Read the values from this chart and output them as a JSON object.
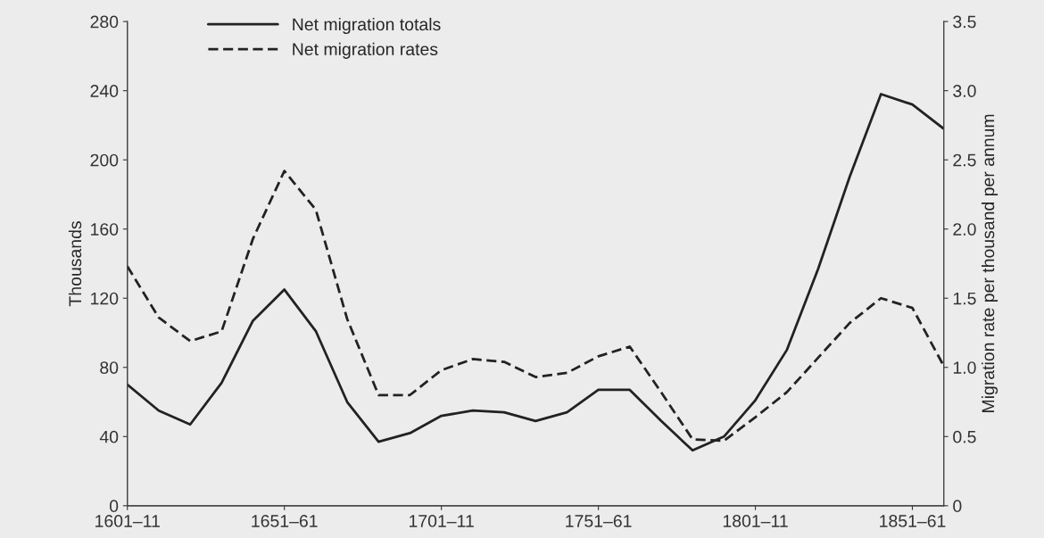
{
  "chart_data": {
    "type": "line",
    "ylabel": "Thousands",
    "y2label": "Migration rate per thousand per annum",
    "categories": [
      "1601–11",
      null,
      null,
      null,
      null,
      "1651–61",
      null,
      null,
      null,
      null,
      "1701–11",
      null,
      null,
      null,
      null,
      "1751–61",
      null,
      null,
      null,
      null,
      "1801–11",
      null,
      null,
      null,
      null,
      "1851–61",
      null
    ],
    "series": [
      {
        "name": "Net migration totals",
        "color": "#222222",
        "line_style": "solid",
        "values": [
          70,
          55,
          47,
          71,
          107,
          125,
          101,
          60,
          37,
          42,
          52,
          55,
          54,
          49,
          54,
          67,
          67,
          49,
          32,
          40,
          61,
          90,
          137,
          190,
          238,
          232,
          218
        ]
      },
      {
        "name": "Net migration rates",
        "color": "#222222",
        "line_style": "dashed",
        "axis": "y2",
        "values": [
          1.73,
          1.36,
          1.19,
          1.26,
          1.93,
          2.42,
          2.14,
          1.35,
          0.8,
          0.8,
          0.98,
          1.06,
          1.04,
          0.93,
          0.96,
          1.08,
          1.15,
          0.82,
          0.48,
          0.47,
          0.64,
          0.82,
          1.07,
          1.32,
          1.5,
          1.43,
          1.01
        ]
      }
    ],
    "ylim": [
      0,
      280
    ],
    "yticks": [
      0,
      40,
      80,
      120,
      160,
      200,
      240,
      280
    ],
    "y2lim": [
      0,
      3.5
    ],
    "y2ticks": [
      0,
      {
        "value": 0.5,
        "label": "0.5"
      },
      {
        "value": 1,
        "label": "1.0"
      },
      {
        "value": 1.5,
        "label": "1.5"
      },
      {
        "value": 2,
        "label": "2.0"
      },
      {
        "value": 2.5,
        "label": "2.5"
      },
      {
        "value": 3,
        "label": "3.0"
      },
      {
        "value": 3.5,
        "label": "3.5"
      }
    ],
    "grid": false,
    "legend": "top left",
    "marker": "none"
  }
}
